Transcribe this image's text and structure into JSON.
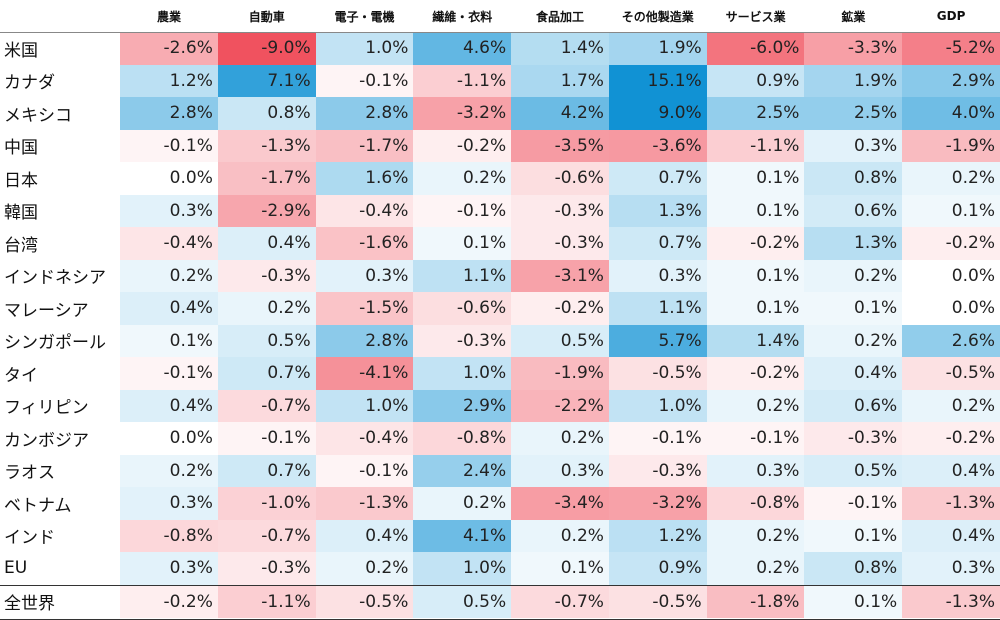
{
  "chart_data": {
    "type": "heatmap",
    "columns": [
      "農業",
      "自動車",
      "電子・電機",
      "繊維・衣料",
      "食品加工",
      "その他製造業",
      "サービス業",
      "鉱業",
      "GDP"
    ],
    "rows": [
      {
        "label": "米国",
        "values": [
          -2.6,
          -9.0,
          1.0,
          4.6,
          1.4,
          1.9,
          -6.0,
          -3.3,
          -5.2
        ]
      },
      {
        "label": "カナダ",
        "values": [
          1.2,
          7.1,
          -0.1,
          -1.1,
          1.7,
          15.1,
          0.9,
          1.9,
          2.9
        ]
      },
      {
        "label": "メキシコ",
        "values": [
          2.8,
          0.8,
          2.8,
          -3.2,
          4.2,
          9.0,
          2.5,
          2.5,
          4.0
        ]
      },
      {
        "label": "中国",
        "values": [
          -0.1,
          -1.3,
          -1.7,
          -0.2,
          -3.5,
          -3.6,
          -1.1,
          0.3,
          -1.9
        ]
      },
      {
        "label": "日本",
        "values": [
          0.0,
          -1.7,
          1.6,
          0.2,
          -0.6,
          0.7,
          0.1,
          0.8,
          0.2
        ]
      },
      {
        "label": "韓国",
        "values": [
          0.3,
          -2.9,
          -0.4,
          -0.1,
          -0.3,
          1.3,
          0.1,
          0.6,
          0.1
        ]
      },
      {
        "label": "台湾",
        "values": [
          -0.4,
          0.4,
          -1.6,
          0.1,
          -0.3,
          0.7,
          -0.2,
          1.3,
          -0.2
        ]
      },
      {
        "label": "インドネシア",
        "values": [
          0.2,
          -0.3,
          0.3,
          1.1,
          -3.1,
          0.3,
          0.1,
          0.2,
          0.0
        ]
      },
      {
        "label": "マレーシア",
        "values": [
          0.4,
          0.2,
          -1.5,
          -0.6,
          -0.2,
          1.1,
          0.1,
          0.1,
          0.0
        ]
      },
      {
        "label": "シンガポール",
        "values": [
          0.1,
          0.5,
          2.8,
          -0.3,
          0.5,
          5.7,
          1.4,
          0.2,
          2.6
        ]
      },
      {
        "label": "タイ",
        "values": [
          -0.1,
          0.7,
          -4.1,
          1.0,
          -1.9,
          -0.5,
          -0.2,
          0.4,
          -0.5
        ]
      },
      {
        "label": "フィリピン",
        "values": [
          0.4,
          -0.7,
          1.0,
          2.9,
          -2.2,
          1.0,
          0.2,
          0.6,
          0.2
        ]
      },
      {
        "label": "カンボジア",
        "values": [
          0.0,
          -0.1,
          -0.4,
          -0.8,
          0.2,
          -0.1,
          -0.1,
          -0.3,
          -0.2
        ]
      },
      {
        "label": "ラオス",
        "values": [
          0.2,
          0.7,
          -0.1,
          2.4,
          0.3,
          -0.3,
          0.3,
          0.5,
          0.4
        ]
      },
      {
        "label": "ベトナム",
        "values": [
          0.3,
          -1.0,
          -1.3,
          0.2,
          -3.4,
          -3.2,
          -0.8,
          -0.1,
          -1.3
        ]
      },
      {
        "label": "インド",
        "values": [
          -0.8,
          -0.7,
          0.4,
          4.1,
          0.2,
          1.2,
          0.2,
          0.1,
          0.4
        ]
      },
      {
        "label": "EU",
        "values": [
          0.3,
          -0.3,
          0.2,
          1.0,
          0.1,
          0.9,
          0.2,
          0.8,
          0.3
        ]
      }
    ],
    "total_row": {
      "label": "全世界",
      "values": [
        -0.2,
        -1.1,
        -0.5,
        0.5,
        -0.7,
        -0.5,
        -1.8,
        0.1,
        -1.3
      ]
    },
    "value_suffix": "%",
    "colors": {
      "negative": "#f0525f",
      "positive": "#1192d4",
      "neutral": "#ffffff"
    }
  }
}
